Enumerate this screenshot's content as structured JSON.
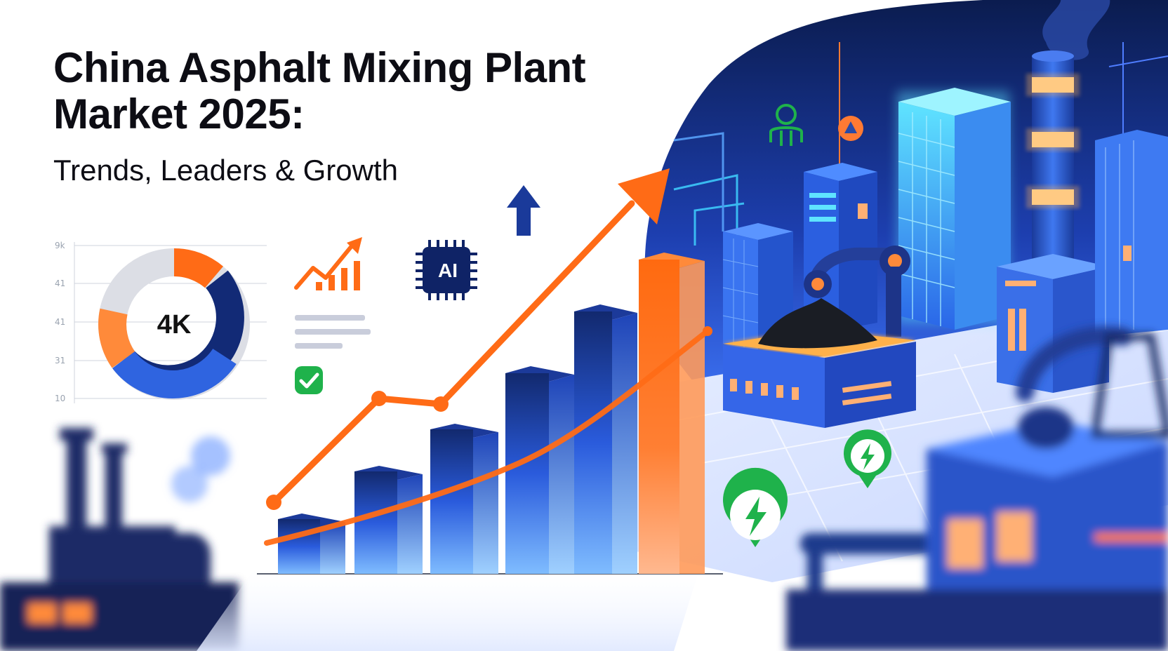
{
  "title_lines": [
    "China Asphalt Mixing Plant",
    "Market 2025:"
  ],
  "subtitle": "Trends, Leaders & Growth",
  "donut": {
    "center_label": "4K",
    "axis_ticks": [
      "9k",
      "41",
      "41",
      "31",
      "10"
    ]
  },
  "ai_chip_label": "AI",
  "colors": {
    "navy": "#0f2366",
    "blue": "#2456d6",
    "light_blue": "#5fa8ff",
    "orange": "#ff6b16",
    "green": "#1fb24b",
    "grey": "#dcdee5",
    "text": "#0d0d14"
  },
  "icons": [
    "up-arrow-icon",
    "trend-chart-icon",
    "ai-chip-icon",
    "check-badge-icon",
    "lightning-pin-icon",
    "person-network-icon",
    "alert-pin-icon"
  ]
}
